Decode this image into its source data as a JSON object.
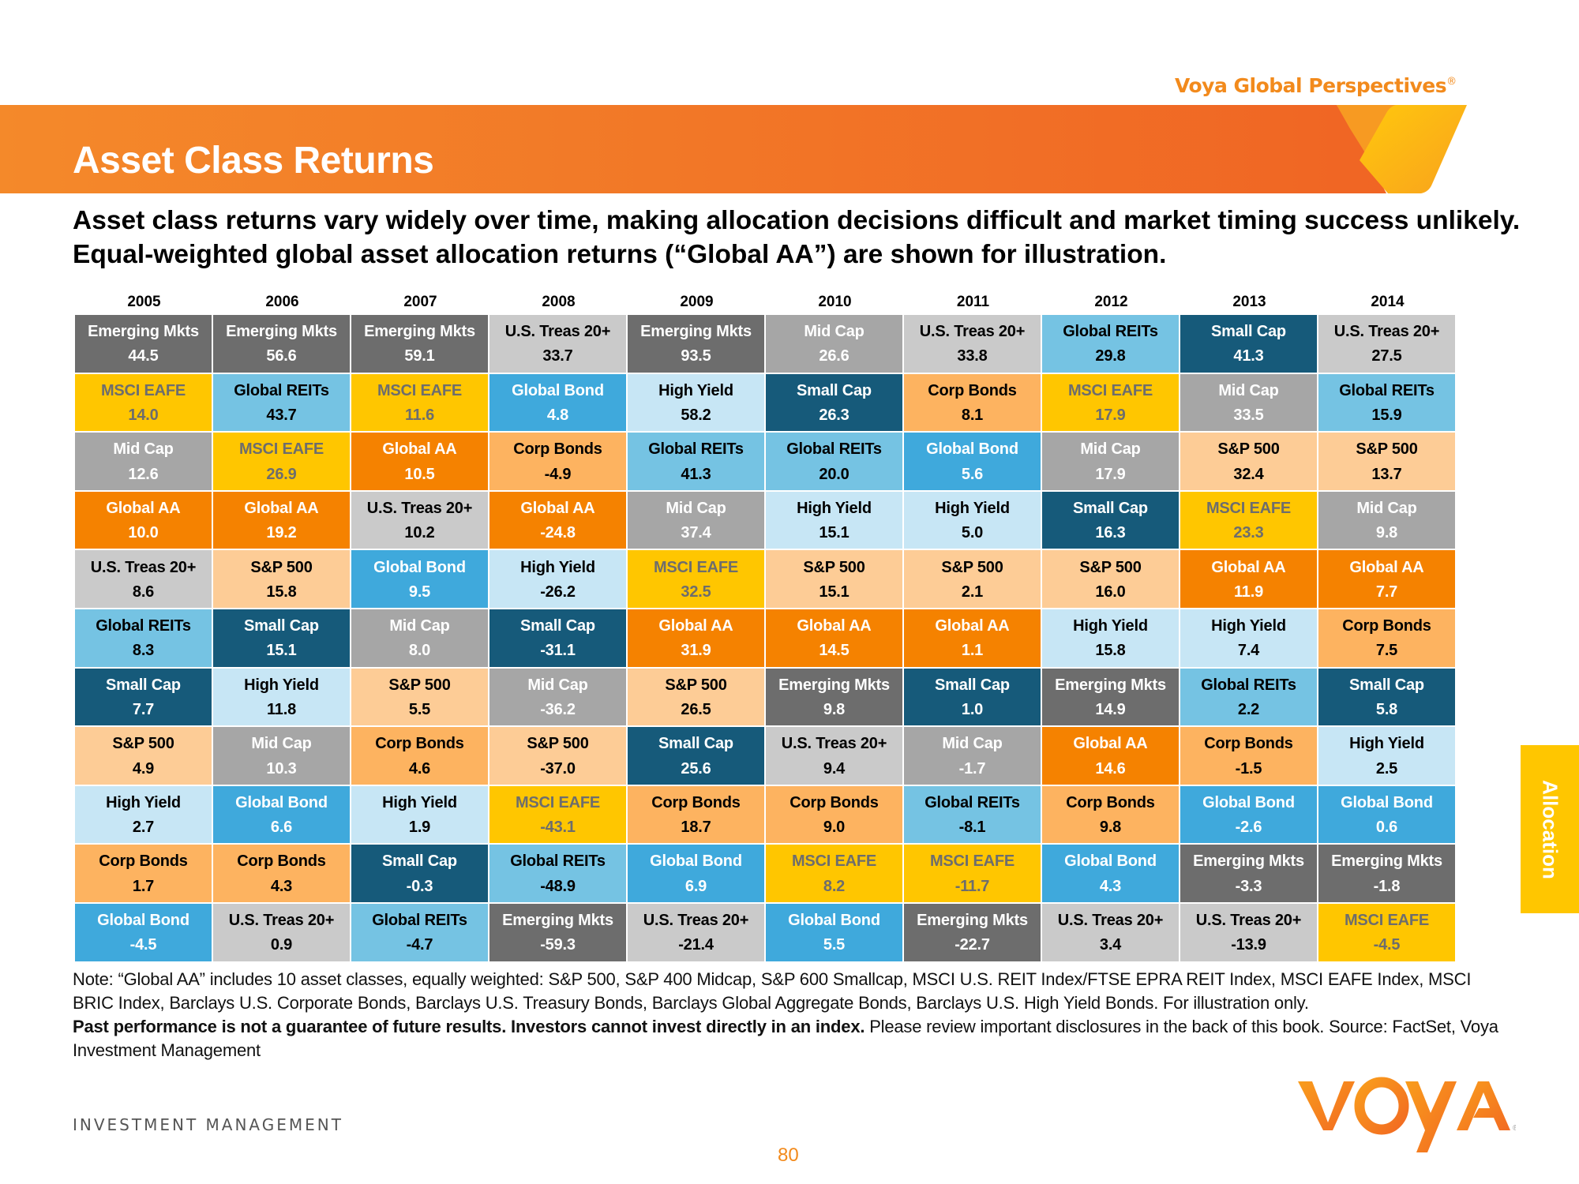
{
  "header": {
    "brand": "Voya Global Perspectives",
    "brand_mark": "®",
    "title": "Asset Class Returns",
    "subtitle": "Asset class returns vary widely over time, making allocation decisions difficult and market timing success unlikely. Equal-weighted global asset allocation returns (“Global AA”) are shown for illustration."
  },
  "side_tab": "Allocation",
  "colors": {
    "banner_orange": "#f26a22",
    "accent_orange": "#f28a1c",
    "accent_yellow": "#ffc600"
  },
  "asset_styles": {
    "Emerging Mkts": {
      "bg": "#6d6d6d",
      "fg": "#ffffff"
    },
    "MSCI EAFE": {
      "bg": "#ffc600",
      "fg": "#6d6d6d"
    },
    "Mid Cap": {
      "bg": "#a6a6a6",
      "fg": "#ffffff"
    },
    "Global AA": {
      "bg": "#f58200",
      "fg": "#ffffff"
    },
    "U.S. Treas 20+": {
      "bg": "#cacaca",
      "fg": "#000000"
    },
    "Global REITs": {
      "bg": "#75c3e3",
      "fg": "#000000"
    },
    "Small Cap": {
      "bg": "#165a7a",
      "fg": "#ffffff"
    },
    "S&P 500": {
      "bg": "#fdcc96",
      "fg": "#000000"
    },
    "High Yield": {
      "bg": "#c7e6f5",
      "fg": "#000000"
    },
    "Corp Bonds": {
      "bg": "#fdb360",
      "fg": "#000000"
    },
    "Global Bond": {
      "bg": "#3fa9dc",
      "fg": "#ffffff"
    }
  },
  "chart_data": {
    "type": "table",
    "title": "Asset Class Returns",
    "years": [
      "2005",
      "2006",
      "2007",
      "2008",
      "2009",
      "2010",
      "2011",
      "2012",
      "2013",
      "2014"
    ],
    "columns": [
      [
        [
          "Emerging Mkts",
          "44.5"
        ],
        [
          "MSCI EAFE",
          "14.0"
        ],
        [
          "Mid Cap",
          "12.6"
        ],
        [
          "Global AA",
          "10.0"
        ],
        [
          "U.S. Treas 20+",
          "8.6"
        ],
        [
          "Global REITs",
          "8.3"
        ],
        [
          "Small Cap",
          "7.7"
        ],
        [
          "S&P 500",
          "4.9"
        ],
        [
          "High Yield",
          "2.7"
        ],
        [
          "Corp Bonds",
          "1.7"
        ],
        [
          "Global Bond",
          "-4.5"
        ]
      ],
      [
        [
          "Emerging Mkts",
          "56.6"
        ],
        [
          "Global REITs",
          "43.7"
        ],
        [
          "MSCI EAFE",
          "26.9"
        ],
        [
          "Global AA",
          "19.2"
        ],
        [
          "S&P 500",
          "15.8"
        ],
        [
          "Small Cap",
          "15.1"
        ],
        [
          "High Yield",
          "11.8"
        ],
        [
          "Mid Cap",
          "10.3"
        ],
        [
          "Global Bond",
          "6.6"
        ],
        [
          "Corp Bonds",
          "4.3"
        ],
        [
          "U.S. Treas 20+",
          "0.9"
        ]
      ],
      [
        [
          "Emerging Mkts",
          "59.1"
        ],
        [
          "MSCI EAFE",
          "11.6"
        ],
        [
          "Global AA",
          "10.5"
        ],
        [
          "U.S. Treas 20+",
          "10.2"
        ],
        [
          "Global Bond",
          "9.5"
        ],
        [
          "Mid Cap",
          "8.0"
        ],
        [
          "S&P 500",
          "5.5"
        ],
        [
          "Corp Bonds",
          "4.6"
        ],
        [
          "High Yield",
          "1.9"
        ],
        [
          "Small Cap",
          "-0.3"
        ],
        [
          "Global REITs",
          "-4.7"
        ]
      ],
      [
        [
          "U.S. Treas 20+",
          "33.7"
        ],
        [
          "Global Bond",
          "4.8"
        ],
        [
          "Corp Bonds",
          "-4.9"
        ],
        [
          "Global AA",
          "-24.8"
        ],
        [
          "High Yield",
          "-26.2"
        ],
        [
          "Small Cap",
          "-31.1"
        ],
        [
          "Mid Cap",
          "-36.2"
        ],
        [
          "S&P 500",
          "-37.0"
        ],
        [
          "MSCI EAFE",
          "-43.1"
        ],
        [
          "Global REITs",
          "-48.9"
        ],
        [
          "Emerging Mkts",
          "-59.3"
        ]
      ],
      [
        [
          "Emerging Mkts",
          "93.5"
        ],
        [
          "High Yield",
          "58.2"
        ],
        [
          "Global REITs",
          "41.3"
        ],
        [
          "Mid Cap",
          "37.4"
        ],
        [
          "MSCI EAFE",
          "32.5"
        ],
        [
          "Global AA",
          "31.9"
        ],
        [
          "S&P 500",
          "26.5"
        ],
        [
          "Small Cap",
          "25.6"
        ],
        [
          "Corp Bonds",
          "18.7"
        ],
        [
          "Global Bond",
          "6.9"
        ],
        [
          "U.S. Treas 20+",
          "-21.4"
        ]
      ],
      [
        [
          "Mid Cap",
          "26.6"
        ],
        [
          "Small Cap",
          "26.3"
        ],
        [
          "Global REITs",
          "20.0"
        ],
        [
          "High Yield",
          "15.1"
        ],
        [
          "S&P 500",
          "15.1"
        ],
        [
          "Global AA",
          "14.5"
        ],
        [
          "Emerging Mkts",
          "9.8"
        ],
        [
          "U.S. Treas 20+",
          "9.4"
        ],
        [
          "Corp Bonds",
          "9.0"
        ],
        [
          "MSCI EAFE",
          "8.2"
        ],
        [
          "Global Bond",
          "5.5"
        ]
      ],
      [
        [
          "U.S. Treas 20+",
          "33.8"
        ],
        [
          "Corp Bonds",
          "8.1"
        ],
        [
          "Global Bond",
          "5.6"
        ],
        [
          "High Yield",
          "5.0"
        ],
        [
          "S&P 500",
          "2.1"
        ],
        [
          "Global AA",
          "1.1"
        ],
        [
          "Small Cap",
          "1.0"
        ],
        [
          "Mid Cap",
          "-1.7"
        ],
        [
          "Global REITs",
          "-8.1"
        ],
        [
          "MSCI EAFE",
          "-11.7"
        ],
        [
          "Emerging Mkts",
          "-22.7"
        ]
      ],
      [
        [
          "Global REITs",
          "29.8"
        ],
        [
          "MSCI EAFE",
          "17.9"
        ],
        [
          "Mid Cap",
          "17.9"
        ],
        [
          "Small Cap",
          "16.3"
        ],
        [
          "S&P 500",
          "16.0"
        ],
        [
          "High Yield",
          "15.8"
        ],
        [
          "Emerging Mkts",
          "14.9"
        ],
        [
          "Global AA",
          "14.6"
        ],
        [
          "Corp Bonds",
          "9.8"
        ],
        [
          "Global Bond",
          "4.3"
        ],
        [
          "U.S. Treas 20+",
          "3.4"
        ]
      ],
      [
        [
          "Small Cap",
          "41.3"
        ],
        [
          "Mid Cap",
          "33.5"
        ],
        [
          "S&P 500",
          "32.4"
        ],
        [
          "MSCI EAFE",
          "23.3"
        ],
        [
          "Global AA",
          "11.9"
        ],
        [
          "High Yield",
          "7.4"
        ],
        [
          "Global REITs",
          "2.2"
        ],
        [
          "Corp Bonds",
          "-1.5"
        ],
        [
          "Global Bond",
          "-2.6"
        ],
        [
          "Emerging Mkts",
          "-3.3"
        ],
        [
          "U.S. Treas 20+",
          "-13.9"
        ]
      ],
      [
        [
          "U.S. Treas 20+",
          "27.5"
        ],
        [
          "Global REITs",
          "15.9"
        ],
        [
          "S&P 500",
          "13.7"
        ],
        [
          "Mid Cap",
          "9.8"
        ],
        [
          "Global AA",
          "7.7"
        ],
        [
          "Corp Bonds",
          "7.5"
        ],
        [
          "Small Cap",
          "5.8"
        ],
        [
          "High Yield",
          "2.5"
        ],
        [
          "Global Bond",
          "0.6"
        ],
        [
          "Emerging Mkts",
          "-1.8"
        ],
        [
          "MSCI EAFE",
          "-4.5"
        ]
      ]
    ]
  },
  "notes": {
    "line1": "Note: “Global AA” includes 10 asset classes, equally weighted: S&P 500, S&P 400 Midcap, S&P 600 Smallcap, MSCI U.S. REIT Index/FTSE EPRA REIT Index, MSCI EAFE Index, MSCI BRIC Index, Barclays U.S. Corporate Bonds, Barclays U.S. Treasury Bonds, Barclays Global Aggregate Bonds, Barclays U.S. High Yield Bonds. For illustration only.",
    "disclaimer_bold": "Past performance is not a guarantee of future results. Investors cannot invest directly in an index.",
    "disclaimer_rest": " Please review important disclosures in the back of this book. Source: FactSet, Voya Investment Management"
  },
  "footer": {
    "division": "INVESTMENT MANAGEMENT",
    "page_number": "80",
    "logo_text": "VOYA",
    "logo_mark": "®"
  }
}
